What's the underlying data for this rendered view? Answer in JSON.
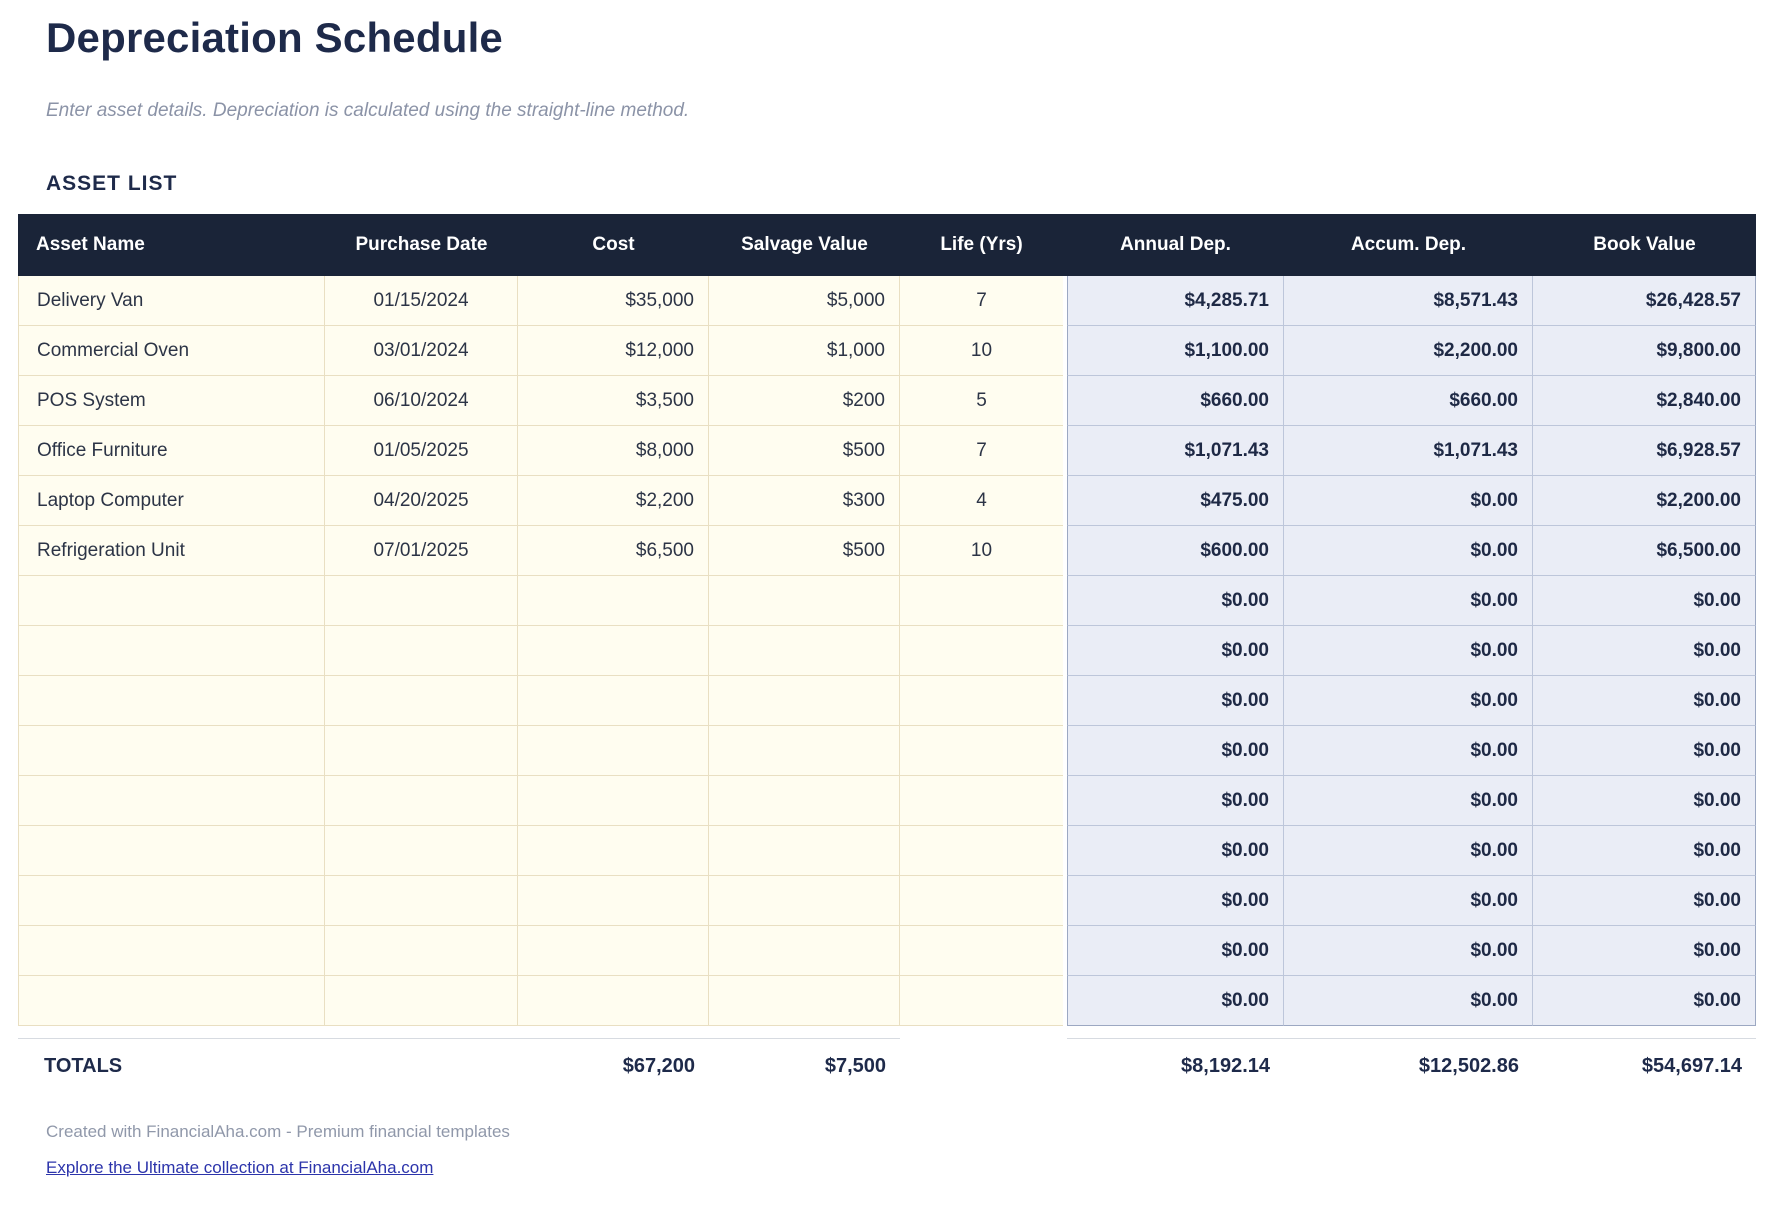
{
  "page": {
    "title": "Depreciation Schedule",
    "subtitle": "Enter asset details. Depreciation is calculated using the straight-line method.",
    "section_title": "ASSET LIST",
    "footer_note": "Created with FinancialAha.com - Premium financial templates",
    "footer_link": "Explore the Ultimate collection at FinancialAha.com"
  },
  "colors": {
    "header_bg": "#1a2438",
    "header_text": "#ffffff",
    "input_cell_bg": "#fffdf0",
    "input_cell_border": "#e9dfc2",
    "calc_cell_bg": "#eaedf6",
    "calc_cell_border": "#bdc6da",
    "calc_block_outer_border": "#9ca8c2",
    "title_text": "#1e2a4a",
    "muted_text": "#8b93a7",
    "link_text": "#2c34ab"
  },
  "table": {
    "columns": [
      "Asset Name",
      "Purchase Date",
      "Cost",
      "Salvage Value",
      "Life (Yrs)",
      "Annual Dep.",
      "Accum. Dep.",
      "Book Value"
    ],
    "rows": [
      {
        "name": "Delivery Van",
        "date": "01/15/2024",
        "cost": "$35,000",
        "salvage": "$5,000",
        "life": "7",
        "annual": "$4,285.71",
        "accum": "$8,571.43",
        "book": "$26,428.57"
      },
      {
        "name": "Commercial Oven",
        "date": "03/01/2024",
        "cost": "$12,000",
        "salvage": "$1,000",
        "life": "10",
        "annual": "$1,100.00",
        "accum": "$2,200.00",
        "book": "$9,800.00"
      },
      {
        "name": "POS System",
        "date": "06/10/2024",
        "cost": "$3,500",
        "salvage": "$200",
        "life": "5",
        "annual": "$660.00",
        "accum": "$660.00",
        "book": "$2,840.00"
      },
      {
        "name": "Office Furniture",
        "date": "01/05/2025",
        "cost": "$8,000",
        "salvage": "$500",
        "life": "7",
        "annual": "$1,071.43",
        "accum": "$1,071.43",
        "book": "$6,928.57"
      },
      {
        "name": "Laptop Computer",
        "date": "04/20/2025",
        "cost": "$2,200",
        "salvage": "$300",
        "life": "4",
        "annual": "$475.00",
        "accum": "$0.00",
        "book": "$2,200.00"
      },
      {
        "name": "Refrigeration Unit",
        "date": "07/01/2025",
        "cost": "$6,500",
        "salvage": "$500",
        "life": "10",
        "annual": "$600.00",
        "accum": "$0.00",
        "book": "$6,500.00"
      },
      {
        "name": "",
        "date": "",
        "cost": "",
        "salvage": "",
        "life": "",
        "annual": "$0.00",
        "accum": "$0.00",
        "book": "$0.00"
      },
      {
        "name": "",
        "date": "",
        "cost": "",
        "salvage": "",
        "life": "",
        "annual": "$0.00",
        "accum": "$0.00",
        "book": "$0.00"
      },
      {
        "name": "",
        "date": "",
        "cost": "",
        "salvage": "",
        "life": "",
        "annual": "$0.00",
        "accum": "$0.00",
        "book": "$0.00"
      },
      {
        "name": "",
        "date": "",
        "cost": "",
        "salvage": "",
        "life": "",
        "annual": "$0.00",
        "accum": "$0.00",
        "book": "$0.00"
      },
      {
        "name": "",
        "date": "",
        "cost": "",
        "salvage": "",
        "life": "",
        "annual": "$0.00",
        "accum": "$0.00",
        "book": "$0.00"
      },
      {
        "name": "",
        "date": "",
        "cost": "",
        "salvage": "",
        "life": "",
        "annual": "$0.00",
        "accum": "$0.00",
        "book": "$0.00"
      },
      {
        "name": "",
        "date": "",
        "cost": "",
        "salvage": "",
        "life": "",
        "annual": "$0.00",
        "accum": "$0.00",
        "book": "$0.00"
      },
      {
        "name": "",
        "date": "",
        "cost": "",
        "salvage": "",
        "life": "",
        "annual": "$0.00",
        "accum": "$0.00",
        "book": "$0.00"
      },
      {
        "name": "",
        "date": "",
        "cost": "",
        "salvage": "",
        "life": "",
        "annual": "$0.00",
        "accum": "$0.00",
        "book": "$0.00"
      }
    ],
    "totals": {
      "label": "TOTALS",
      "cost": "$67,200",
      "salvage": "$7,500",
      "annual": "$8,192.14",
      "accum": "$12,502.86",
      "book": "$54,697.14"
    }
  }
}
